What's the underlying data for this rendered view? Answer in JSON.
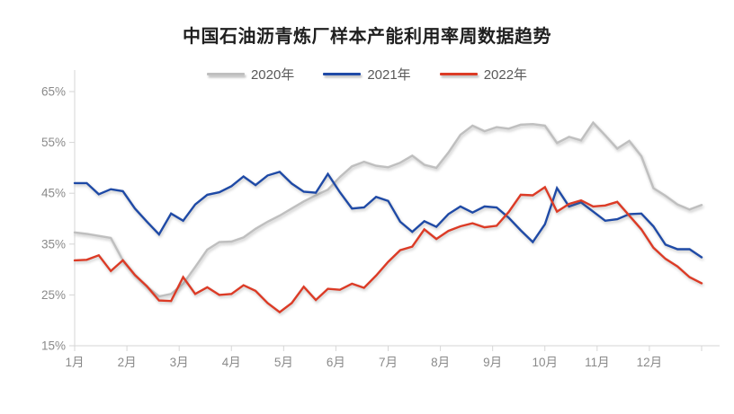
{
  "title": "中国石油沥青炼厂样本产能利用率周数据趋势",
  "legend": {
    "items": [
      {
        "label": "2020年",
        "color": "#BFBFBF"
      },
      {
        "label": "2021年",
        "color": "#1F4AA6"
      },
      {
        "label": "2022年",
        "color": "#DC3B26"
      }
    ]
  },
  "colors": {
    "background": "#FFFFFF",
    "axis": "#D6D6D6",
    "tick_label": "#8A8A8A",
    "title_text": "#1F1F1F",
    "legend_text": "#595959"
  },
  "chart_data": {
    "type": "line",
    "title": "中国石油沥青炼厂样本产能利用率周数据趋势",
    "xlabel": "",
    "ylabel": "",
    "x_unit": "week (Jan–Dec, 53 weekly points per year)",
    "x_axis": {
      "tick_labels": [
        "1月",
        "2月",
        "3月",
        "4月",
        "5月",
        "6月",
        "7月",
        "8月",
        "9月",
        "10月",
        "11月",
        "12月"
      ]
    },
    "y_axis": {
      "min": 15,
      "max": 65,
      "ticks": [
        65,
        55,
        45,
        35,
        25,
        15
      ],
      "tick_labels": [
        "65%",
        "55%",
        "45%",
        "35%",
        "25%",
        "15%"
      ]
    },
    "grid": false,
    "legend_position": "top",
    "series": [
      {
        "name": "2020年",
        "color": "#BFBFBF",
        "values": [
          37.3,
          37.0,
          36.6,
          36.2,
          31.8,
          28.9,
          26.6,
          24.7,
          25.2,
          27.2,
          30.5,
          33.9,
          35.4,
          35.5,
          36.3,
          38.0,
          39.4,
          40.6,
          42.0,
          43.4,
          44.6,
          45.7,
          48.2,
          50.3,
          51.2,
          50.4,
          50.1,
          51.0,
          52.4,
          50.6,
          50.0,
          53.0,
          56.5,
          58.3,
          57.2,
          58.0,
          57.7,
          58.5,
          58.6,
          58.3,
          54.9,
          56.1,
          55.4,
          58.9,
          56.4,
          53.8,
          55.3,
          52.3,
          46.0,
          44.5,
          42.8,
          41.8,
          42.7
        ]
      },
      {
        "name": "2021年",
        "color": "#1F4AA6",
        "values": [
          47.0,
          47.0,
          44.8,
          45.8,
          45.4,
          42.0,
          39.4,
          36.9,
          41.0,
          39.6,
          42.8,
          44.7,
          45.2,
          46.4,
          48.3,
          46.6,
          48.5,
          49.2,
          46.9,
          45.3,
          45.1,
          48.8,
          45.2,
          42.0,
          42.2,
          44.3,
          43.5,
          39.4,
          37.4,
          39.5,
          38.4,
          40.9,
          42.4,
          41.2,
          42.4,
          42.2,
          40.2,
          37.7,
          35.4,
          38.9,
          46.0,
          42.4,
          43.2,
          41.4,
          39.6,
          39.9,
          40.9,
          41.0,
          38.5,
          34.9,
          34.0,
          34.0,
          32.4
        ]
      },
      {
        "name": "2022年",
        "color": "#DC3B26",
        "values": [
          31.8,
          31.9,
          32.8,
          29.7,
          31.8,
          28.9,
          26.7,
          23.9,
          23.8,
          28.5,
          25.2,
          26.5,
          25.0,
          25.2,
          26.9,
          25.8,
          23.4,
          21.6,
          23.4,
          26.6,
          24.0,
          26.2,
          26.0,
          27.2,
          26.4,
          28.8,
          31.5,
          33.8,
          34.5,
          37.9,
          36.0,
          37.6,
          38.5,
          39.1,
          38.3,
          38.6,
          41.3,
          44.7,
          44.6,
          46.2,
          41.4,
          42.9,
          43.6,
          42.4,
          42.6,
          43.3,
          40.6,
          37.9,
          34.3,
          32.1,
          30.6,
          28.5,
          27.3
        ]
      }
    ]
  }
}
